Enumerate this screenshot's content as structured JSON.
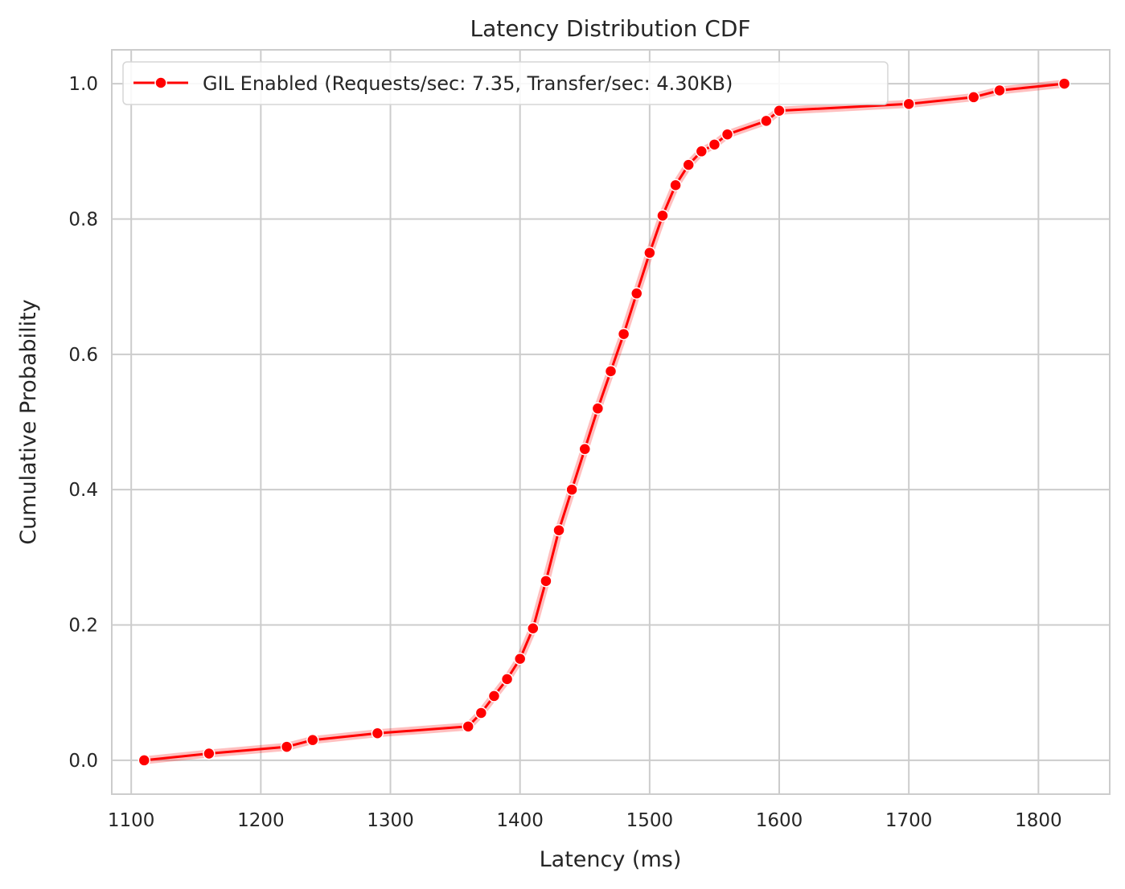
{
  "chart_data": {
    "type": "line",
    "title": "Latency Distribution CDF",
    "xlabel": "Latency (ms)",
    "ylabel": "Cumulative Probability",
    "xlim": [
      1085,
      1855
    ],
    "ylim": [
      -0.05,
      1.05
    ],
    "xticks": [
      1100,
      1200,
      1300,
      1400,
      1500,
      1600,
      1700,
      1800
    ],
    "yticks": [
      0.0,
      0.2,
      0.4,
      0.6,
      0.8,
      1.0
    ],
    "xtick_labels": [
      "1100",
      "1200",
      "1300",
      "1400",
      "1500",
      "1600",
      "1700",
      "1800"
    ],
    "ytick_labels": [
      "0.0",
      "0.2",
      "0.4",
      "0.6",
      "0.8",
      "1.0"
    ],
    "grid": true,
    "legend_position": "top-left",
    "series": [
      {
        "name": "GIL Enabled (Requests/sec: 7.35, Transfer/sec: 4.30KB)",
        "color": "#ff0000",
        "marker": "circle",
        "x": [
          1110,
          1160,
          1220,
          1240,
          1290,
          1360,
          1370,
          1380,
          1390,
          1400,
          1410,
          1420,
          1430,
          1440,
          1450,
          1460,
          1470,
          1480,
          1490,
          1500,
          1510,
          1520,
          1530,
          1540,
          1550,
          1560,
          1590,
          1600,
          1700,
          1750,
          1770,
          1820
        ],
        "y": [
          0.0,
          0.01,
          0.02,
          0.03,
          0.04,
          0.05,
          0.07,
          0.095,
          0.12,
          0.15,
          0.195,
          0.265,
          0.34,
          0.4,
          0.46,
          0.52,
          0.575,
          0.63,
          0.69,
          0.75,
          0.805,
          0.85,
          0.88,
          0.9,
          0.91,
          0.925,
          0.945,
          0.96,
          0.97,
          0.98,
          0.99,
          1.0
        ]
      }
    ]
  }
}
